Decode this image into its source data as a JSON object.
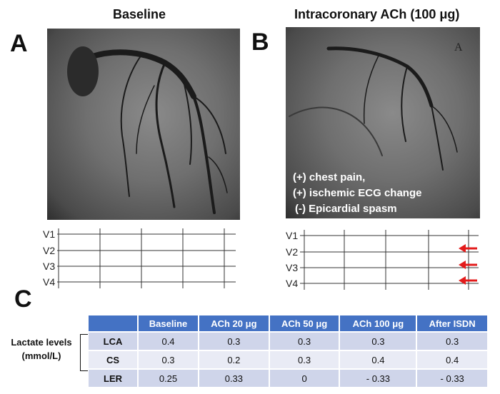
{
  "panels": {
    "a": {
      "letter": "A",
      "title": "Baseline"
    },
    "b": {
      "letter": "B",
      "title": "Intracoronary ACh (100 μg)",
      "findings": [
        "(+) chest pain,",
        "(+) ischemic ECG change",
        "(-) Epicardial spasm"
      ],
      "angio_marker": "A"
    },
    "c": {
      "letter": "C"
    }
  },
  "ecg": {
    "leads": [
      "V1",
      "V2",
      "V3",
      "V4"
    ],
    "arrow_leads": [
      "V2",
      "V3",
      "V4"
    ],
    "arrow_color": "#e31b1b"
  },
  "table": {
    "side_label": [
      "Lactate levels",
      "(mmol/L)"
    ],
    "headers": [
      "",
      "Baseline",
      "ACh 20 μg",
      "ACh 50 μg",
      "ACh 100 μg",
      "After ISDN"
    ],
    "rows": [
      {
        "label": "LCA",
        "values": [
          "0.4",
          "0.3",
          "0.3",
          "0.3",
          "0.3"
        ]
      },
      {
        "label": "CS",
        "values": [
          "0.3",
          "0.2",
          "0.3",
          "0.4",
          "0.4"
        ]
      },
      {
        "label": "LER",
        "values": [
          "0.25",
          "0.33",
          "0",
          "- 0.33",
          "- 0.33"
        ]
      }
    ],
    "header_color": "#4472c4"
  }
}
